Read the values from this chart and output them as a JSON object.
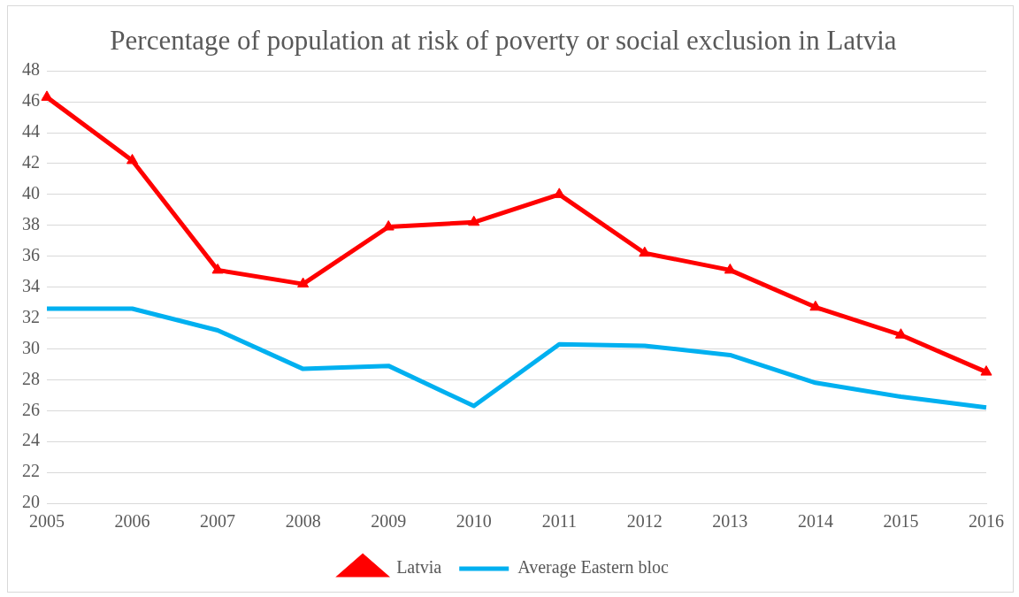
{
  "chart_data": {
    "type": "line",
    "title": "Percentage of population at risk of poverty or social exclusion in Latvia",
    "categories": [
      "2005",
      "2006",
      "2007",
      "2008",
      "2009",
      "2010",
      "2011",
      "2012",
      "2013",
      "2014",
      "2015",
      "2016"
    ],
    "series": [
      {
        "name": "Latvia",
        "color": "#ff0000",
        "marker": "triangle",
        "values": [
          46.3,
          42.2,
          35.1,
          34.2,
          37.9,
          38.2,
          40.0,
          36.2,
          35.1,
          32.7,
          30.9,
          28.5
        ]
      },
      {
        "name": "Average Eastern bloc",
        "color": "#00b0f0",
        "marker": "none",
        "values": [
          32.6,
          32.6,
          31.2,
          28.7,
          28.9,
          26.3,
          30.3,
          30.2,
          29.6,
          27.8,
          26.9,
          26.2
        ]
      }
    ],
    "ylim": [
      20,
      48
    ],
    "yticks": [
      20,
      22,
      24,
      26,
      28,
      30,
      32,
      34,
      36,
      38,
      40,
      42,
      44,
      46,
      48
    ],
    "grid": "y",
    "legend": "bottom",
    "line_style": "solid"
  }
}
